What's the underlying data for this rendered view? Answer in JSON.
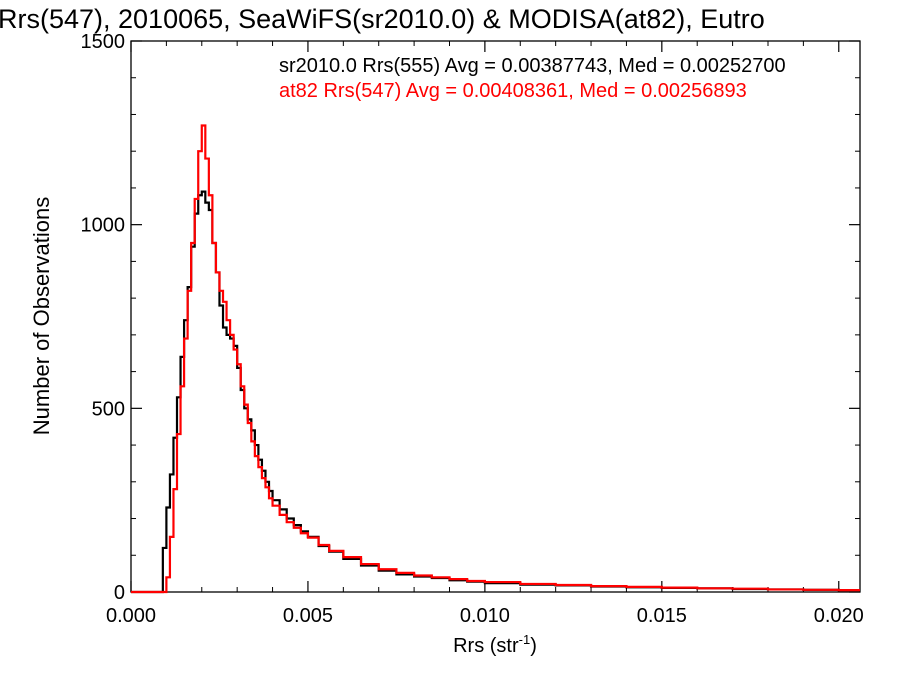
{
  "chart_data": {
    "type": "line",
    "title": "Rrs(547), 2010065, SeaWiFS(sr2010.0) & MODISA(at82), Eutro",
    "xlabel_main": "Rrs (str",
    "xlabel_sup": "-1",
    "xlabel_close": ")",
    "ylabel": "Number of Observations",
    "xlim": [
      0,
      0.0206
    ],
    "ylim": [
      0,
      1500
    ],
    "x_ticks": [
      "0.000",
      "0.005",
      "0.010",
      "0.015",
      "0.020"
    ],
    "y_ticks": [
      "0",
      "500",
      "1000",
      "1500"
    ],
    "grid": false,
    "series": [
      {
        "name": "sr2010.0",
        "color": "#000000",
        "legend": "sr2010.0 Rrs(555) Avg = 0.00387743, Med = 0.00252700",
        "points": [
          [
            0.0,
            0
          ],
          [
            0.0008,
            0
          ],
          [
            0.0009,
            120
          ],
          [
            0.001,
            230
          ],
          [
            0.0011,
            320
          ],
          [
            0.0012,
            420
          ],
          [
            0.0013,
            530
          ],
          [
            0.0014,
            640
          ],
          [
            0.0015,
            740
          ],
          [
            0.0016,
            830
          ],
          [
            0.0017,
            940
          ],
          [
            0.0018,
            1030
          ],
          [
            0.0019,
            1080
          ],
          [
            0.002,
            1090
          ],
          [
            0.0021,
            1060
          ],
          [
            0.0022,
            1040
          ],
          [
            0.0023,
            950
          ],
          [
            0.0024,
            870
          ],
          [
            0.0025,
            780
          ],
          [
            0.0026,
            720
          ],
          [
            0.0027,
            700
          ],
          [
            0.0028,
            690
          ],
          [
            0.0029,
            670
          ],
          [
            0.003,
            610
          ],
          [
            0.0031,
            550
          ],
          [
            0.0032,
            500
          ],
          [
            0.0033,
            470
          ],
          [
            0.0034,
            440
          ],
          [
            0.0035,
            400
          ],
          [
            0.0036,
            360
          ],
          [
            0.0037,
            330
          ],
          [
            0.0038,
            300
          ],
          [
            0.0039,
            275
          ],
          [
            0.004,
            250
          ],
          [
            0.0042,
            225
          ],
          [
            0.0044,
            200
          ],
          [
            0.0046,
            182
          ],
          [
            0.0048,
            165
          ],
          [
            0.005,
            150
          ],
          [
            0.0053,
            125
          ],
          [
            0.0056,
            110
          ],
          [
            0.006,
            90
          ],
          [
            0.0065,
            72
          ],
          [
            0.007,
            58
          ],
          [
            0.0075,
            48
          ],
          [
            0.008,
            42
          ],
          [
            0.0085,
            38
          ],
          [
            0.009,
            32
          ],
          [
            0.0095,
            28
          ],
          [
            0.01,
            24
          ],
          [
            0.011,
            20
          ],
          [
            0.012,
            18
          ],
          [
            0.013,
            15
          ],
          [
            0.014,
            13
          ],
          [
            0.015,
            11
          ],
          [
            0.016,
            10
          ],
          [
            0.017,
            8
          ],
          [
            0.018,
            7
          ],
          [
            0.019,
            6
          ],
          [
            0.02,
            5
          ],
          [
            0.0206,
            5
          ]
        ]
      },
      {
        "name": "at82",
        "color": "#ff0000",
        "legend": "at82 Rrs(547) Avg = 0.00408361, Med = 0.00256893",
        "points": [
          [
            0.0,
            0
          ],
          [
            0.0009,
            0
          ],
          [
            0.001,
            40
          ],
          [
            0.0011,
            150
          ],
          [
            0.0012,
            280
          ],
          [
            0.0013,
            430
          ],
          [
            0.0014,
            560
          ],
          [
            0.0015,
            690
          ],
          [
            0.0016,
            820
          ],
          [
            0.0017,
            950
          ],
          [
            0.0018,
            1070
          ],
          [
            0.0019,
            1200
          ],
          [
            0.002,
            1270
          ],
          [
            0.0021,
            1180
          ],
          [
            0.0022,
            1080
          ],
          [
            0.0023,
            950
          ],
          [
            0.0024,
            870
          ],
          [
            0.0025,
            820
          ],
          [
            0.0026,
            790
          ],
          [
            0.0027,
            740
          ],
          [
            0.0028,
            700
          ],
          [
            0.0029,
            660
          ],
          [
            0.003,
            620
          ],
          [
            0.0031,
            560
          ],
          [
            0.0032,
            510
          ],
          [
            0.0033,
            460
          ],
          [
            0.0034,
            410
          ],
          [
            0.0035,
            370
          ],
          [
            0.0036,
            340
          ],
          [
            0.0037,
            310
          ],
          [
            0.0038,
            285
          ],
          [
            0.0039,
            255
          ],
          [
            0.004,
            235
          ],
          [
            0.0042,
            210
          ],
          [
            0.0044,
            190
          ],
          [
            0.0046,
            175
          ],
          [
            0.0048,
            160
          ],
          [
            0.005,
            148
          ],
          [
            0.0053,
            128
          ],
          [
            0.0056,
            112
          ],
          [
            0.006,
            95
          ],
          [
            0.0065,
            76
          ],
          [
            0.007,
            62
          ],
          [
            0.0075,
            52
          ],
          [
            0.008,
            45
          ],
          [
            0.0085,
            40
          ],
          [
            0.009,
            35
          ],
          [
            0.0095,
            30
          ],
          [
            0.01,
            27
          ],
          [
            0.011,
            22
          ],
          [
            0.012,
            19
          ],
          [
            0.013,
            16
          ],
          [
            0.014,
            14
          ],
          [
            0.015,
            12
          ],
          [
            0.016,
            10
          ],
          [
            0.017,
            9
          ],
          [
            0.018,
            7
          ],
          [
            0.019,
            6
          ],
          [
            0.02,
            5
          ],
          [
            0.0206,
            5
          ]
        ]
      }
    ]
  }
}
